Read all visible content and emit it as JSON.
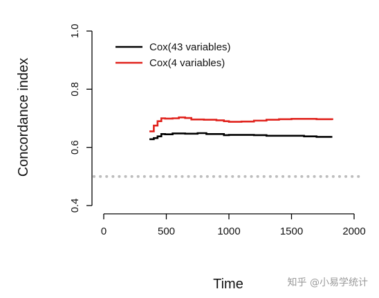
{
  "chart_data": {
    "type": "line",
    "title": "",
    "xlabel": "Time",
    "ylabel": "Concordance index",
    "xlim": [
      0,
      2000
    ],
    "ylim": [
      0.4,
      1.0
    ],
    "x_ticks": [
      "0",
      "500",
      "1000",
      "1500",
      "2000"
    ],
    "x_tick_values": [
      0,
      500,
      1000,
      1500,
      2000
    ],
    "y_ticks": [
      "0.4",
      "0.6",
      "0.8",
      "1.0"
    ],
    "y_tick_values": [
      0.4,
      0.6,
      0.8,
      1.0
    ],
    "grid": false,
    "legend_position": "top-left",
    "reference_line": {
      "y": 0.5,
      "style": "dotted",
      "color": "#bdbdbd"
    },
    "series": [
      {
        "name": "Cox(43 variables)",
        "color": "#000000",
        "x": [
          365,
          400,
          430,
          460,
          490,
          550,
          650,
          750,
          820,
          900,
          960,
          1000,
          1100,
          1200,
          1300,
          1400,
          1500,
          1600,
          1700,
          1826
        ],
        "y": [
          0.628,
          0.632,
          0.638,
          0.646,
          0.645,
          0.648,
          0.647,
          0.649,
          0.646,
          0.646,
          0.642,
          0.643,
          0.643,
          0.642,
          0.64,
          0.64,
          0.64,
          0.638,
          0.636,
          0.636
        ]
      },
      {
        "name": "Cox(4 variables)",
        "color": "#e0211b",
        "x": [
          365,
          400,
          430,
          460,
          490,
          550,
          600,
          650,
          700,
          800,
          900,
          960,
          1000,
          1100,
          1200,
          1300,
          1400,
          1500,
          1600,
          1700,
          1826
        ],
        "y": [
          0.655,
          0.675,
          0.69,
          0.7,
          0.699,
          0.7,
          0.703,
          0.701,
          0.696,
          0.695,
          0.693,
          0.69,
          0.688,
          0.689,
          0.692,
          0.695,
          0.697,
          0.698,
          0.698,
          0.697,
          0.694
        ]
      }
    ]
  },
  "watermark": "知乎 @小易学统计"
}
